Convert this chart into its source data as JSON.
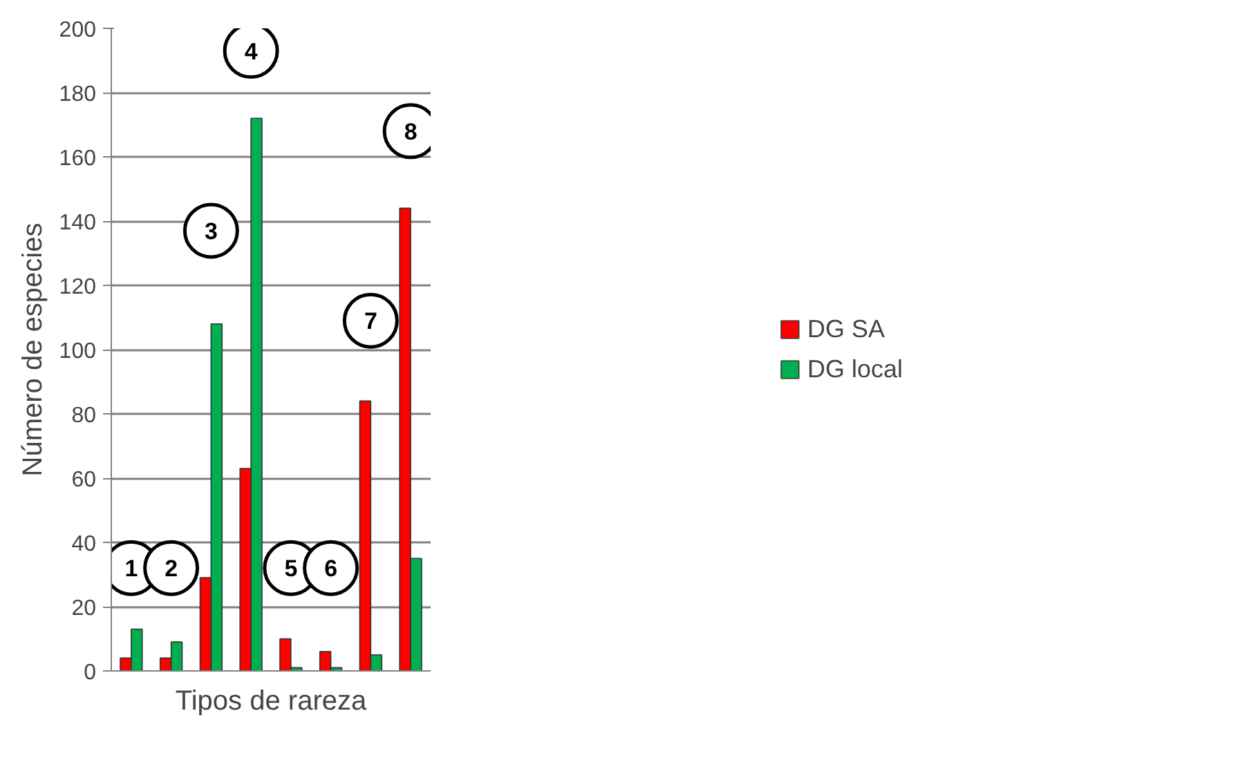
{
  "chart_data": {
    "type": "bar",
    "xlabel": "Tipos de rareza",
    "ylabel": "Número de especies",
    "categories": [
      null,
      null,
      null,
      null,
      null,
      null,
      null,
      null
    ],
    "series": [
      {
        "name": "DG SA",
        "color": "#ff0000",
        "values": [
          4,
          4,
          29,
          63,
          10,
          6,
          84,
          144
        ]
      },
      {
        "name": "DG local",
        "color": "#00b050",
        "values": [
          13,
          9,
          108,
          172,
          1,
          1,
          5,
          35
        ]
      }
    ],
    "annotations": [
      {
        "text": "1",
        "y": 32
      },
      {
        "text": "2",
        "y": 32
      },
      {
        "text": "3",
        "y": 137
      },
      {
        "text": "4",
        "y": 193
      },
      {
        "text": "5",
        "y": 32
      },
      {
        "text": "6",
        "y": 32
      },
      {
        "text": "7",
        "y": 109
      },
      {
        "text": "8",
        "y": 168
      }
    ],
    "ylim": [
      0,
      200
    ],
    "yticks": [
      0,
      20,
      40,
      60,
      80,
      100,
      120,
      140,
      160,
      180,
      200
    ],
    "grid": "y",
    "legend": "right"
  }
}
